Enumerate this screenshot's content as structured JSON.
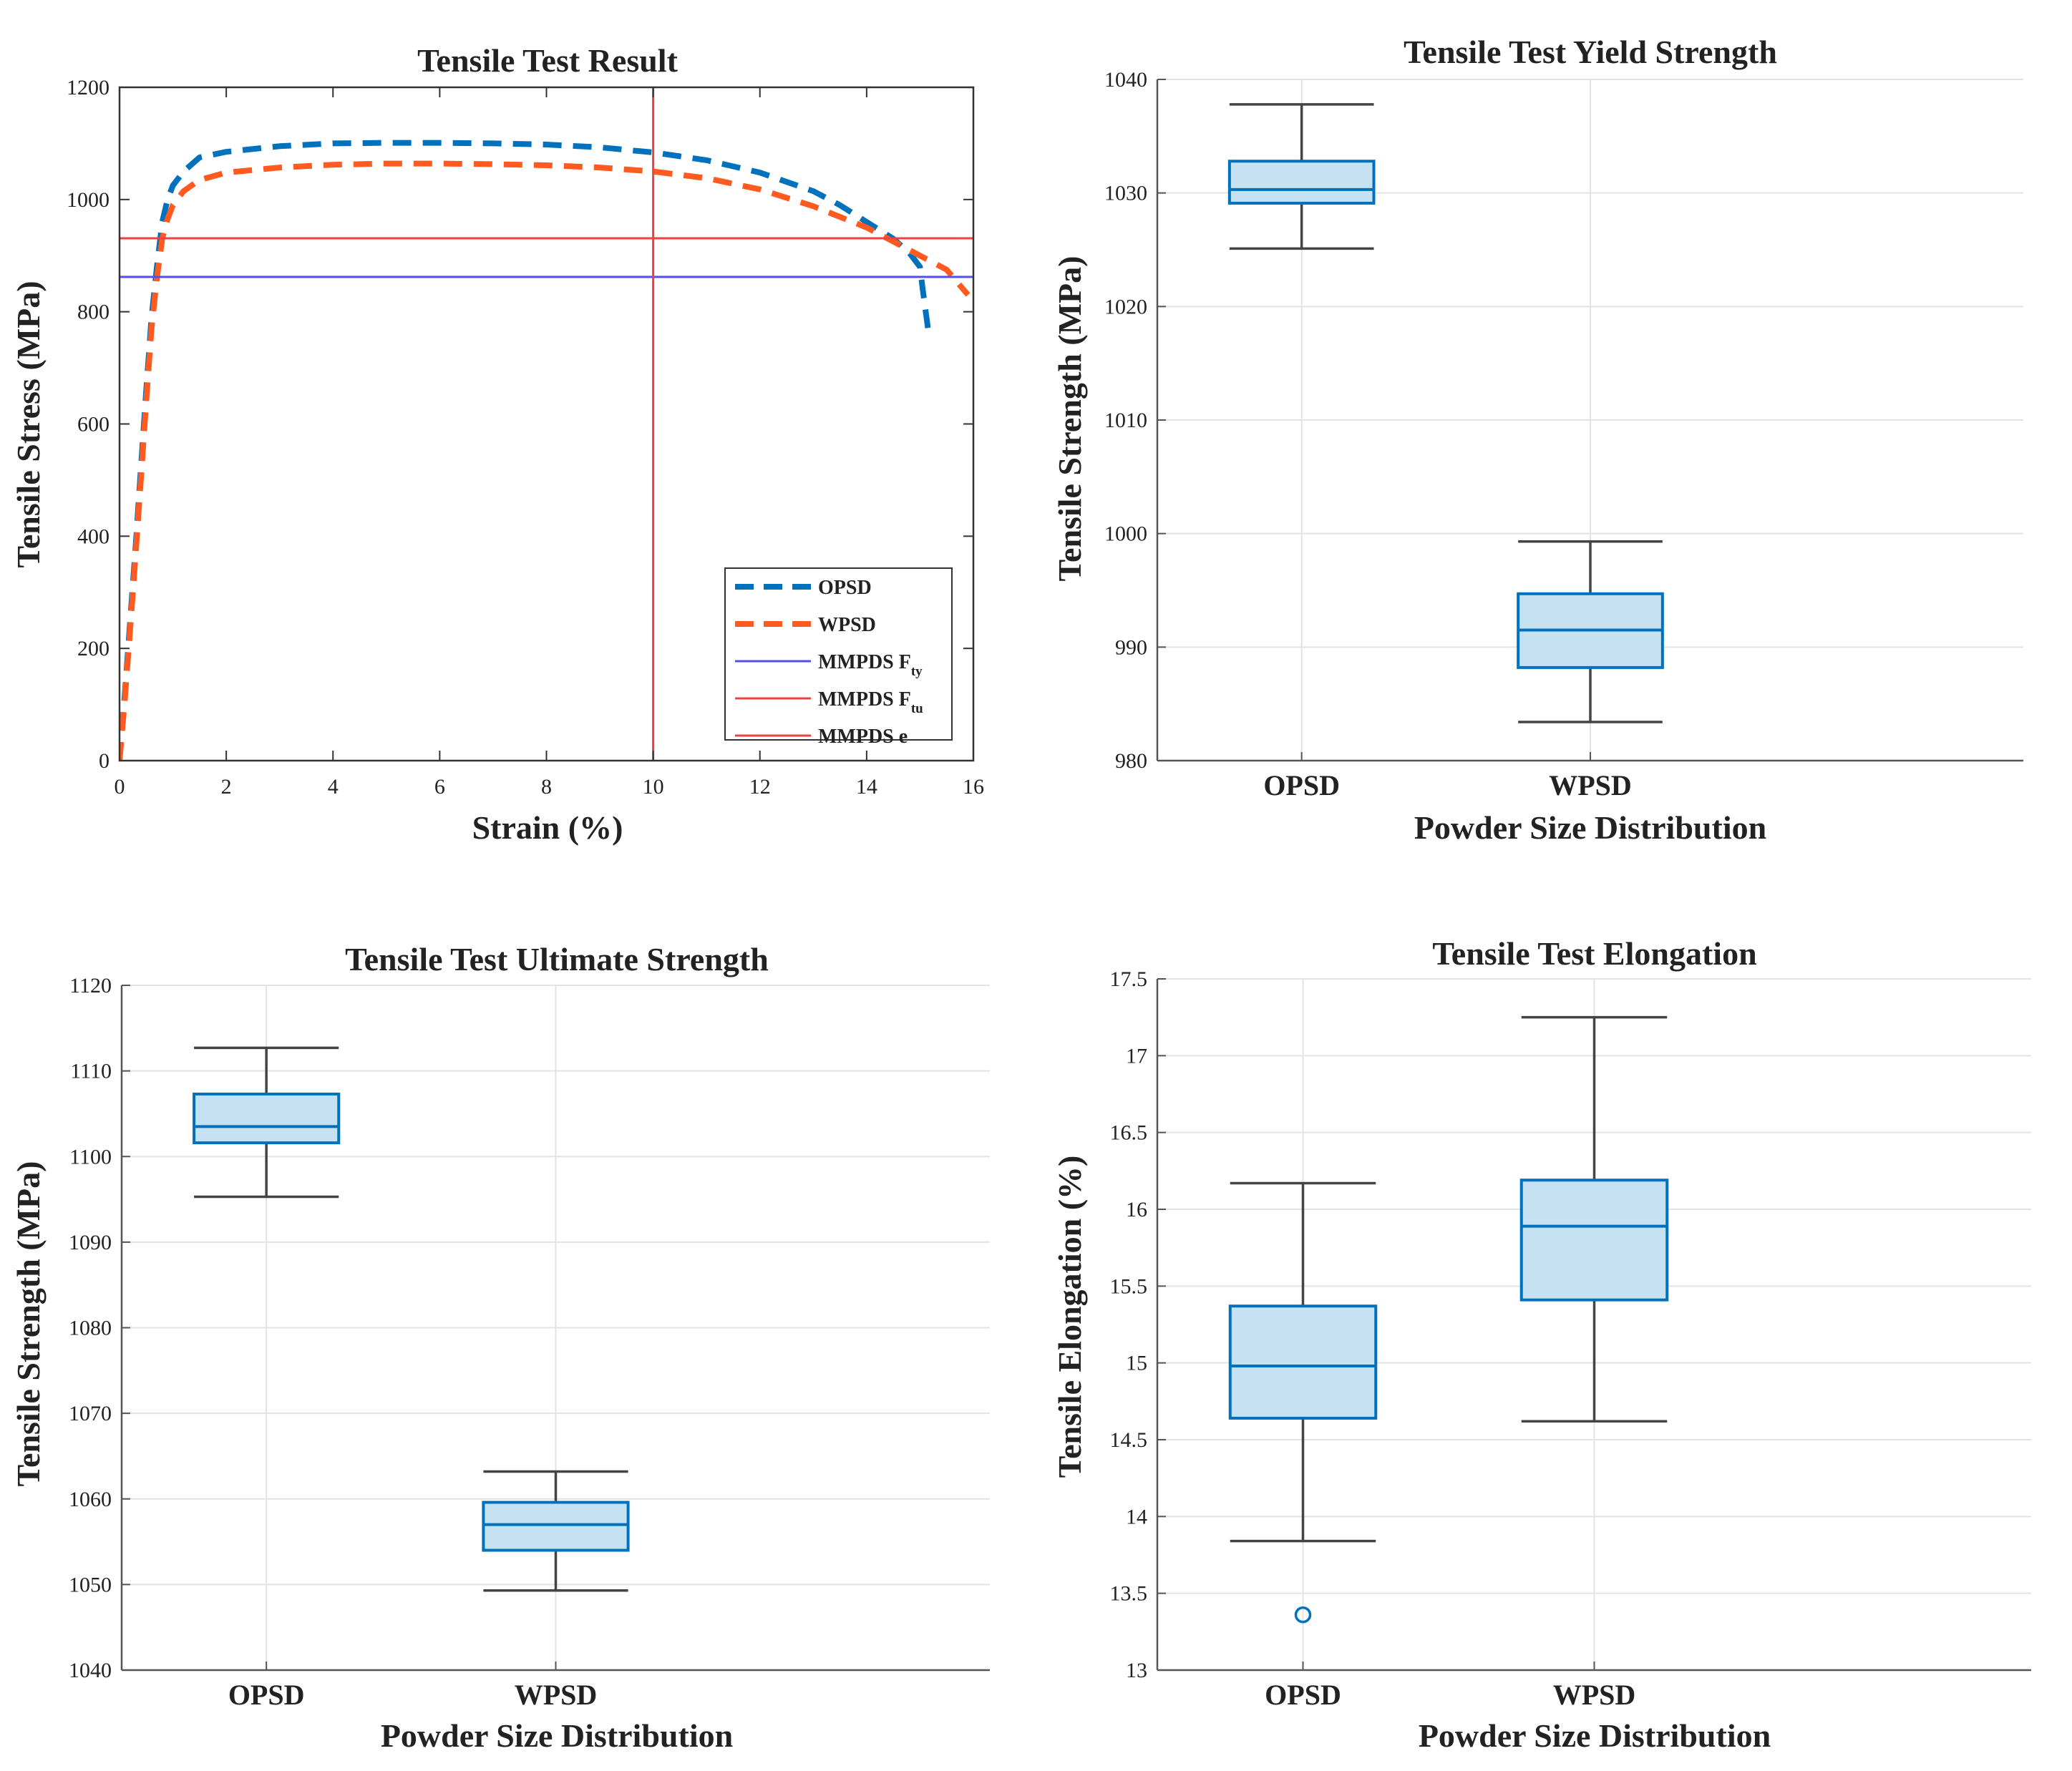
{
  "chart_data": [
    {
      "type": "line",
      "title": "Tensile Test Result",
      "xlabel": "Strain (%)",
      "ylabel": "Tensile Stress (MPa)",
      "xlim": [
        0,
        16
      ],
      "ylim": [
        0,
        1200
      ],
      "xticks": [
        0,
        2,
        4,
        6,
        8,
        10,
        12,
        14,
        16
      ],
      "yticks": [
        0,
        200,
        400,
        600,
        800,
        1000,
        1200
      ],
      "grid": false,
      "legend_position": "bottom-right",
      "series": [
        {
          "name": "OPSD",
          "style": "dashed",
          "color": "#0072BD",
          "x": [
            0,
            0.1,
            0.2,
            0.3,
            0.4,
            0.5,
            0.6,
            0.7,
            0.8,
            0.9,
            1.0,
            1.2,
            1.5,
            2,
            3,
            4,
            5,
            6,
            7,
            8,
            9,
            10,
            11,
            12,
            13,
            13.5,
            14,
            14.5,
            14.8,
            15.0,
            15.05,
            15.15
          ],
          "y": [
            0,
            120,
            250,
            380,
            520,
            660,
            790,
            880,
            960,
            1000,
            1025,
            1050,
            1075,
            1085,
            1095,
            1100,
            1101,
            1101,
            1100,
            1098,
            1093,
            1084,
            1070,
            1048,
            1015,
            990,
            960,
            930,
            905,
            880,
            840,
            770
          ],
          "label": "OPSD"
        },
        {
          "name": "WPSD",
          "style": "dashed",
          "color": "#FF5A1F",
          "x": [
            0,
            0.1,
            0.2,
            0.3,
            0.4,
            0.5,
            0.6,
            0.7,
            0.8,
            0.9,
            1.0,
            1.2,
            1.5,
            2,
            3,
            4,
            5,
            6,
            7,
            8,
            9,
            10,
            11,
            12,
            13,
            14,
            14.5,
            15,
            15.5,
            15.9
          ],
          "y": [
            0,
            110,
            235,
            365,
            500,
            640,
            770,
            860,
            930,
            965,
            990,
            1015,
            1035,
            1048,
            1057,
            1062,
            1064,
            1064,
            1063,
            1061,
            1057,
            1050,
            1038,
            1018,
            988,
            950,
            925,
            900,
            875,
            830
          ],
          "label": "WPSD"
        },
        {
          "name": "MMPDS Fty",
          "style": "solid",
          "color": "#5050F0",
          "orientation": "horizontal",
          "value": 862,
          "label_main": "MMPDS F",
          "label_sub": "ty"
        },
        {
          "name": "MMPDS Ftu",
          "style": "solid",
          "color": "#F04040",
          "orientation": "horizontal",
          "value": 931,
          "label_main": "MMPDS F",
          "label_sub": "tu"
        },
        {
          "name": "MMPDS e",
          "style": "solid",
          "color": "#F04040",
          "orientation": "vertical",
          "value": 10,
          "label_main": "MMPDS e",
          "label_sub": ""
        }
      ]
    },
    {
      "type": "box",
      "title": "Tensile Test Yield Strength",
      "xlabel": "Powder Size Distribution",
      "ylabel": "Tensile Strength (MPa)",
      "ylim": [
        980,
        1040
      ],
      "yticks": [
        980,
        990,
        1000,
        1010,
        1020,
        1030,
        1040
      ],
      "grid": true,
      "categories": [
        "OPSD",
        "WPSD"
      ],
      "boxes": [
        {
          "category": "OPSD",
          "whisker_low": 1025.1,
          "q1": 1029.1,
          "median": 1030.3,
          "q3": 1032.8,
          "whisker_high": 1037.8,
          "outliers": []
        },
        {
          "category": "WPSD",
          "whisker_low": 983.4,
          "q1": 988.2,
          "median": 991.5,
          "q3": 994.7,
          "whisker_high": 999.3,
          "outliers": []
        }
      ]
    },
    {
      "type": "box",
      "title": "Tensile Test Ultimate Strength",
      "xlabel": "Powder Size Distribution",
      "ylabel": "Tensile Strength (MPa)",
      "ylim": [
        1040,
        1120
      ],
      "yticks": [
        1040,
        1050,
        1060,
        1070,
        1080,
        1090,
        1100,
        1110,
        1120
      ],
      "grid": true,
      "categories": [
        "OPSD",
        "WPSD"
      ],
      "boxes": [
        {
          "category": "OPSD",
          "whisker_low": 1095.3,
          "q1": 1101.6,
          "median": 1103.5,
          "q3": 1107.3,
          "whisker_high": 1112.7,
          "outliers": []
        },
        {
          "category": "WPSD",
          "whisker_low": 1049.3,
          "q1": 1054.0,
          "median": 1057.0,
          "q3": 1059.6,
          "whisker_high": 1063.2,
          "outliers": []
        }
      ]
    },
    {
      "type": "box",
      "title": "Tensile Test Elongation",
      "xlabel": "Powder Size Distribution",
      "ylabel": "Tensile Elongation (%)",
      "ylim": [
        13,
        17.5
      ],
      "yticks": [
        13,
        13.5,
        14,
        14.5,
        15,
        15.5,
        16,
        16.5,
        17,
        17.5
      ],
      "yticklabels": [
        "13",
        "13.5",
        "14",
        "14.5",
        "15",
        "15.5",
        "16",
        "16.5",
        "17",
        "17.5"
      ],
      "grid": true,
      "categories": [
        "OPSD",
        "WPSD"
      ],
      "boxes": [
        {
          "category": "OPSD",
          "whisker_low": 13.84,
          "q1": 14.64,
          "median": 14.98,
          "q3": 15.37,
          "whisker_high": 16.17,
          "outliers": [
            13.36
          ]
        },
        {
          "category": "WPSD",
          "whisker_low": 14.62,
          "q1": 15.41,
          "median": 15.89,
          "q3": 16.19,
          "whisker_high": 17.25,
          "outliers": []
        }
      ]
    }
  ]
}
